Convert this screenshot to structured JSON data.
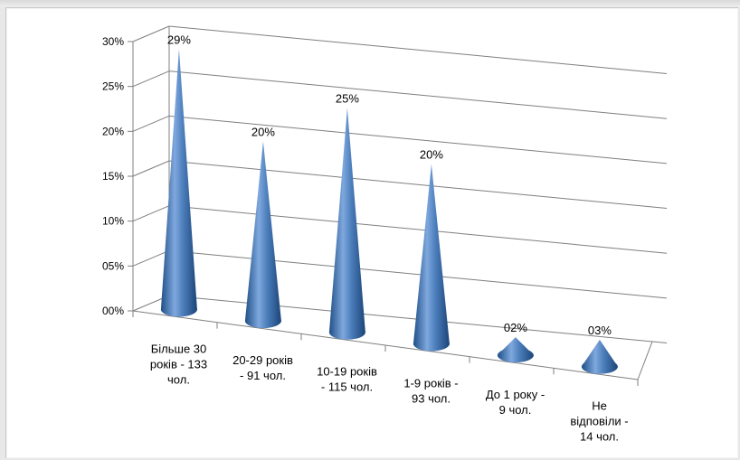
{
  "chart_data": {
    "type": "bar",
    "style": "3d-cone",
    "title": "",
    "xlabel": "",
    "ylabel": "",
    "ylim": [
      0,
      30
    ],
    "y_ticks": [
      "00%",
      "05%",
      "10%",
      "15%",
      "20%",
      "25%",
      "30%"
    ],
    "grid": true,
    "legend": "none",
    "bar_color": "#4a7ebb",
    "categories": [
      [
        "Більше 30",
        "років - 133",
        "чол."
      ],
      [
        "20-29  років",
        "- 91 чол."
      ],
      [
        "10-19  років",
        "- 115 чол."
      ],
      [
        "1-9 років -",
        "93 чол."
      ],
      [
        "До 1 року -",
        "9 чол."
      ],
      [
        "Не",
        "відповіли -",
        "14 чол."
      ]
    ],
    "values": [
      29,
      20,
      25,
      20,
      2,
      3
    ],
    "data_labels": [
      "29%",
      "20%",
      "25%",
      "20%",
      "02%",
      "03%"
    ]
  }
}
